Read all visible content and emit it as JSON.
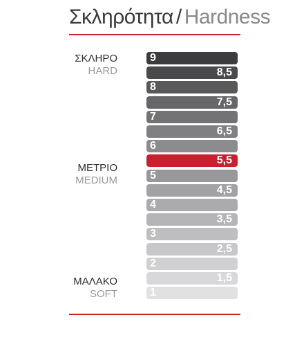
{
  "title": {
    "greek": "Σκληρότητα",
    "separator": "/",
    "english": "Hardness"
  },
  "accent_color": "#c8202f",
  "labels": {
    "hard": {
      "greek": "ΣΚΛΗΡΟ",
      "english": "HARD"
    },
    "medium": {
      "greek": "ΜΕΤΡΙΟ",
      "english": "MEDIUM"
    },
    "soft": {
      "greek": "ΜΑΛΑΚΟ",
      "english": "SOFT"
    }
  },
  "scale": [
    {
      "value": "9",
      "color": "#3c3c3e",
      "kind": "whole"
    },
    {
      "value": "8,5",
      "color": "#4a4a4c",
      "kind": "half"
    },
    {
      "value": "8",
      "color": "#58585a",
      "kind": "whole"
    },
    {
      "value": "7,5",
      "color": "#666668",
      "kind": "half"
    },
    {
      "value": "7",
      "color": "#737375",
      "kind": "whole"
    },
    {
      "value": "6,5",
      "color": "#808082",
      "kind": "half"
    },
    {
      "value": "6",
      "color": "#8c8c8e",
      "kind": "whole"
    },
    {
      "value": "5,5",
      "color": "#c8202f",
      "kind": "half"
    },
    {
      "value": "5",
      "color": "#98989a",
      "kind": "whole"
    },
    {
      "value": "4,5",
      "color": "#a2a2a4",
      "kind": "half"
    },
    {
      "value": "4",
      "color": "#ababad",
      "kind": "whole"
    },
    {
      "value": "3,5",
      "color": "#b5b5b7",
      "kind": "half"
    },
    {
      "value": "3",
      "color": "#bebec0",
      "kind": "whole"
    },
    {
      "value": "2,5",
      "color": "#c7c7c9",
      "kind": "half"
    },
    {
      "value": "2",
      "color": "#d0d0d2",
      "kind": "whole"
    },
    {
      "value": "1,5",
      "color": "#d8d8da",
      "kind": "half"
    },
    {
      "value": "1",
      "color": "#e1e1e3",
      "kind": "whole"
    }
  ],
  "highlighted_value": "5,5"
}
